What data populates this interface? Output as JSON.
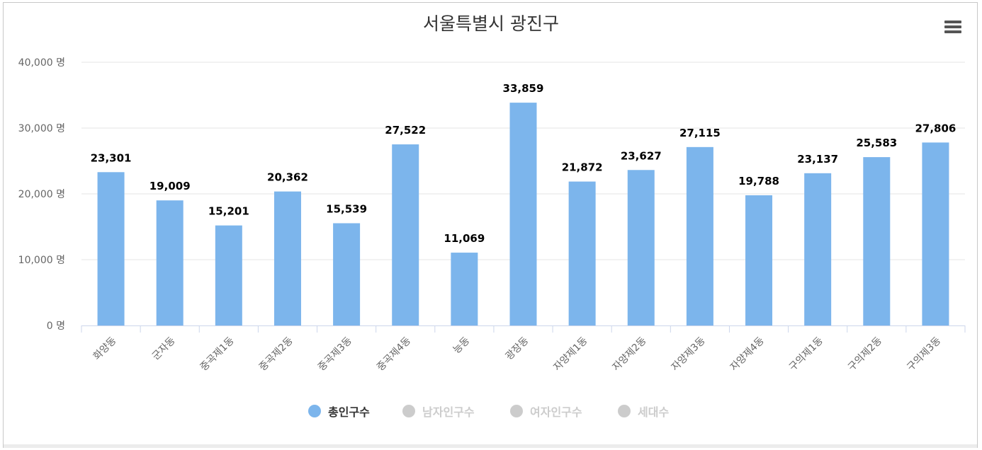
{
  "chart_data": {
    "type": "bar",
    "title": "서울특별시 광진구",
    "categories": [
      "화양동",
      "군자동",
      "중곡제1동",
      "중곡제2동",
      "중곡제3동",
      "중곡제4동",
      "능동",
      "광장동",
      "자양제1동",
      "자양제2동",
      "자양제3동",
      "자양제4동",
      "구의제1동",
      "구의제2동",
      "구의제3동"
    ],
    "series": [
      {
        "name": "총인구수",
        "values": [
          23301,
          19009,
          15201,
          20362,
          15539,
          27522,
          11069,
          33859,
          21872,
          23627,
          27115,
          19788,
          23137,
          25583,
          27806
        ],
        "color": "#7cb5ec",
        "visible": true
      }
    ],
    "data_labels": [
      "23,301",
      "19,009",
      "15,201",
      "20,362",
      "15,539",
      "27,522",
      "11,069",
      "33,859",
      "21,872",
      "23,627",
      "27,115",
      "19,788",
      "23,137",
      "25,583",
      "27,806"
    ],
    "y_ticks": [
      0,
      10000,
      20000,
      30000,
      40000
    ],
    "y_tick_labels": [
      "0 명",
      "10,000 명",
      "20,000 명",
      "30,000 명",
      "40,000 명"
    ],
    "ylim": [
      0,
      40000
    ],
    "grid": true,
    "legend_position": "bottom-center"
  },
  "legend": {
    "items": [
      {
        "label": "총인구수",
        "color": "#7cb5ec",
        "active": true
      },
      {
        "label": "남자인구수",
        "color": "#cccccc",
        "active": false
      },
      {
        "label": "여자인구수",
        "color": "#cccccc",
        "active": false
      },
      {
        "label": "세대수",
        "color": "#cccccc",
        "active": false
      }
    ]
  },
  "menu": {
    "icon": "hamburger-menu-icon"
  }
}
